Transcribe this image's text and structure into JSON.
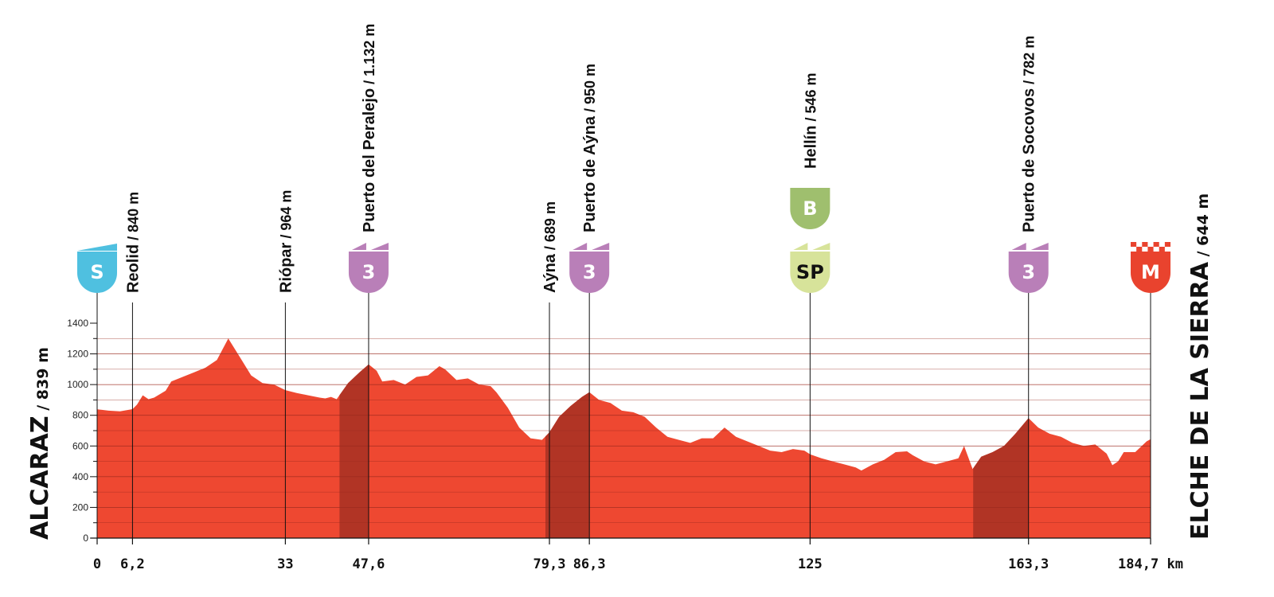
{
  "chart_data": {
    "type": "area",
    "title": "",
    "xlabel": "",
    "ylabel": "",
    "x_unit": "km",
    "ylim": [
      0,
      1400
    ],
    "yticks": [
      0,
      200,
      400,
      600,
      800,
      1000,
      1200,
      1400
    ],
    "xlim": [
      0,
      184.7
    ],
    "grid": true,
    "colors": {
      "profile": "#ee4831",
      "climb": "#b13425",
      "axis": "#111111",
      "grid": "#9a2a1d"
    },
    "profile": [
      [
        0,
        839
      ],
      [
        2,
        830
      ],
      [
        4,
        826
      ],
      [
        6.2,
        840
      ],
      [
        7,
        870
      ],
      [
        8,
        930
      ],
      [
        9,
        905
      ],
      [
        10,
        915
      ],
      [
        12,
        960
      ],
      [
        13,
        1020
      ],
      [
        15,
        1050
      ],
      [
        17,
        1080
      ],
      [
        19,
        1110
      ],
      [
        21,
        1160
      ],
      [
        23,
        1300
      ],
      [
        25,
        1180
      ],
      [
        27,
        1060
      ],
      [
        29,
        1010
      ],
      [
        31,
        1000
      ],
      [
        33,
        964
      ],
      [
        35,
        945
      ],
      [
        37,
        930
      ],
      [
        39,
        915
      ],
      [
        40,
        910
      ],
      [
        41,
        920
      ],
      [
        42,
        905
      ],
      [
        44,
        1010
      ],
      [
        46,
        1080
      ],
      [
        47.6,
        1132
      ],
      [
        49,
        1090
      ],
      [
        50,
        1020
      ],
      [
        52,
        1030
      ],
      [
        54,
        1000
      ],
      [
        56,
        1050
      ],
      [
        58,
        1060
      ],
      [
        60,
        1120
      ],
      [
        61,
        1100
      ],
      [
        63,
        1030
      ],
      [
        65,
        1040
      ],
      [
        67,
        1000
      ],
      [
        69,
        990
      ],
      [
        70,
        950
      ],
      [
        72,
        850
      ],
      [
        74,
        720
      ],
      [
        76,
        650
      ],
      [
        78,
        640
      ],
      [
        79.3,
        689
      ],
      [
        81,
        790
      ],
      [
        83,
        860
      ],
      [
        85,
        920
      ],
      [
        86.3,
        950
      ],
      [
        88,
        900
      ],
      [
        90,
        880
      ],
      [
        92,
        830
      ],
      [
        94,
        820
      ],
      [
        96,
        790
      ],
      [
        98,
        720
      ],
      [
        100,
        660
      ],
      [
        102,
        640
      ],
      [
        104,
        620
      ],
      [
        106,
        650
      ],
      [
        108,
        650
      ],
      [
        110,
        720
      ],
      [
        112,
        660
      ],
      [
        114,
        630
      ],
      [
        116,
        600
      ],
      [
        118,
        570
      ],
      [
        120,
        560
      ],
      [
        122,
        580
      ],
      [
        124,
        570
      ],
      [
        125,
        546
      ],
      [
        127,
        520
      ],
      [
        129,
        500
      ],
      [
        131,
        480
      ],
      [
        133,
        460
      ],
      [
        134,
        440
      ],
      [
        136,
        480
      ],
      [
        138,
        510
      ],
      [
        140,
        560
      ],
      [
        142,
        565
      ],
      [
        143,
        540
      ],
      [
        145,
        500
      ],
      [
        147,
        480
      ],
      [
        149,
        500
      ],
      [
        151,
        520
      ],
      [
        152,
        600
      ],
      [
        153.5,
        450
      ],
      [
        155,
        530
      ],
      [
        157,
        560
      ],
      [
        159,
        600
      ],
      [
        161,
        680
      ],
      [
        163.3,
        782
      ],
      [
        165,
        720
      ],
      [
        167,
        680
      ],
      [
        169,
        660
      ],
      [
        171,
        620
      ],
      [
        173,
        600
      ],
      [
        175,
        610
      ],
      [
        177,
        550
      ],
      [
        178,
        475
      ],
      [
        179,
        500
      ],
      [
        180,
        560
      ],
      [
        182,
        560
      ],
      [
        184,
        630
      ],
      [
        184.7,
        644
      ]
    ],
    "climbs": [
      {
        "from": 42.5,
        "to": 47.6
      },
      {
        "from": 78.6,
        "to": 86.3
      },
      {
        "from": 153.6,
        "to": 163.3
      }
    ],
    "markers": [
      {
        "km": 0,
        "km_label": "0",
        "name": "",
        "alt": "",
        "badge": "S",
        "badge_color": "#4fc0e0",
        "badge_style": "start"
      },
      {
        "km": 6.2,
        "km_label": "6,2",
        "name": "Reolid",
        "alt": " / 840 m"
      },
      {
        "km": 33,
        "km_label": "33",
        "name": "Riópar",
        "alt": " / 964 m"
      },
      {
        "km": 47.6,
        "km_label": "47,6",
        "name": "Puerto del Peralejo",
        "alt": " / 1.132 m",
        "badge": "3",
        "badge_color": "#b97fb8",
        "badge_style": "kom"
      },
      {
        "km": 79.3,
        "km_label": "79,3",
        "name": "Aýna",
        "alt": " / 689 m"
      },
      {
        "km": 86.3,
        "km_label": "86,3",
        "name": "Puerto de Aýna",
        "alt": " / 950 m",
        "badge": "3",
        "badge_color": "#b97fb8",
        "badge_style": "kom"
      },
      {
        "km": 125,
        "km_label": "125",
        "name": "Hellín",
        "alt": " / 546 m",
        "badge": "SP",
        "badge_color": "#d7e39a",
        "badge_style": "sprint",
        "badge2": "B",
        "badge2_color": "#9fbf6e"
      },
      {
        "km": 163.3,
        "km_label": "163,3",
        "name": "Puerto de Socovos",
        "alt": " / 782 m",
        "badge": "3",
        "badge_color": "#b97fb8",
        "badge_style": "kom"
      },
      {
        "km": 184.7,
        "km_label": "184,7 km",
        "name": "",
        "alt": "",
        "badge": "M",
        "badge_color": "#e9432e",
        "badge_style": "finish"
      }
    ],
    "start": {
      "name": "ALCARAZ",
      "alt": " / 839 m"
    },
    "finish": {
      "name": "ELCHE DE LA SIERRA",
      "alt": " / 644 m"
    }
  }
}
